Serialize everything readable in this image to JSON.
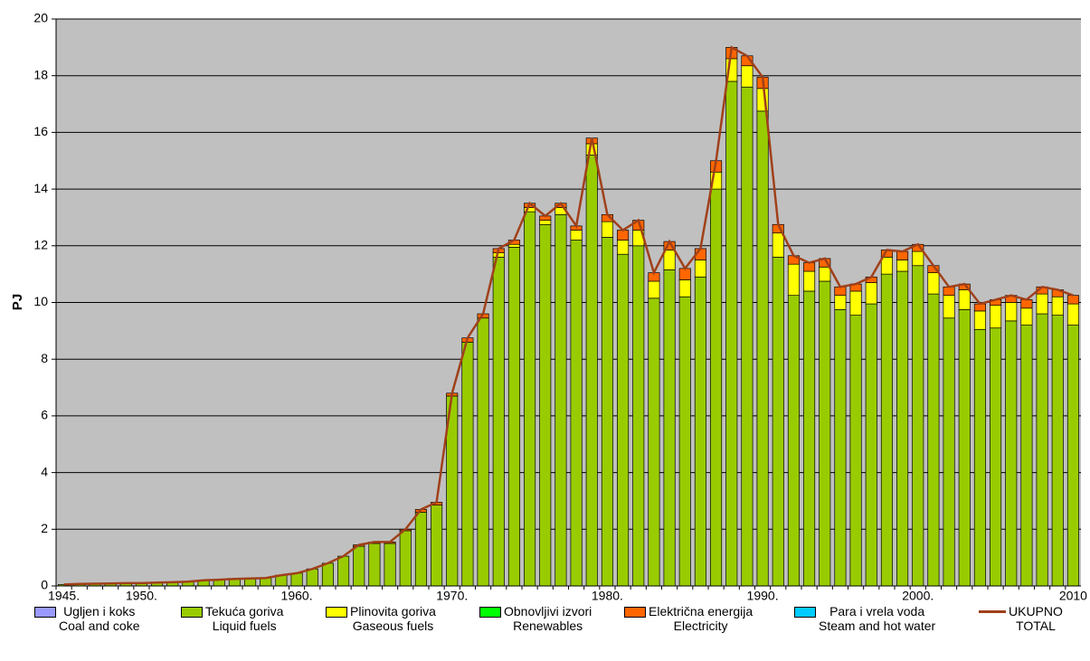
{
  "chart_data": {
    "type": "bar",
    "stacked": true,
    "ylabel": "PJ",
    "categories": [
      "1945.",
      null,
      null,
      null,
      null,
      "1950.",
      null,
      null,
      null,
      null,
      null,
      null,
      null,
      null,
      null,
      "1960.",
      null,
      null,
      null,
      null,
      null,
      null,
      null,
      null,
      null,
      "1970.",
      null,
      null,
      null,
      null,
      null,
      null,
      null,
      null,
      null,
      "1980.",
      null,
      null,
      null,
      null,
      null,
      null,
      null,
      null,
      null,
      "1990.",
      null,
      null,
      null,
      null,
      null,
      null,
      null,
      null,
      null,
      "2000.",
      null,
      null,
      null,
      null,
      null,
      null,
      null,
      null,
      null,
      "2010"
    ],
    "series": [
      {
        "name": "Ugljen i koks\nCoal and coke",
        "color": "#9999ff",
        "values": [
          0,
          0,
          0,
          0,
          0,
          0,
          0,
          0,
          0,
          0,
          0,
          0,
          0,
          0,
          0,
          0,
          0,
          0,
          0,
          0,
          0,
          0,
          0,
          0,
          0,
          0,
          0,
          0,
          0,
          0,
          0,
          0,
          0,
          0,
          0,
          0,
          0,
          0,
          0,
          0,
          0,
          0,
          0,
          0,
          0,
          0,
          0,
          0,
          0,
          0,
          0,
          0,
          0,
          0,
          0,
          0,
          0,
          0,
          0,
          0,
          0,
          0,
          0,
          0,
          0,
          0
        ]
      },
      {
        "name": "Tekuća goriva\nLiquid fuels",
        "color": "#99cc00",
        "values": [
          0.05,
          0.07,
          0.08,
          0.09,
          0.1,
          0.1,
          0.12,
          0.13,
          0.15,
          0.2,
          0.22,
          0.25,
          0.26,
          0.28,
          0.38,
          0.45,
          0.6,
          0.8,
          1.05,
          1.4,
          1.5,
          1.5,
          1.95,
          2.6,
          2.85,
          6.7,
          8.6,
          9.45,
          11.6,
          11.95,
          13.2,
          12.75,
          13.1,
          12.2,
          15.2,
          12.3,
          11.7,
          12.0,
          10.15,
          11.15,
          10.2,
          10.9,
          14.0,
          17.8,
          17.6,
          16.75,
          11.6,
          10.25,
          10.4,
          10.75,
          9.75,
          9.55,
          9.95,
          11.0,
          11.1,
          11.3,
          10.3,
          9.45,
          9.75,
          9.05,
          9.1,
          9.35,
          9.2,
          9.6,
          9.55,
          9.2
        ]
      },
      {
        "name": "Plinovita goriva\nGaseous fuels",
        "color": "#ffff00",
        "values": [
          0,
          0,
          0,
          0,
          0,
          0,
          0,
          0,
          0,
          0,
          0,
          0,
          0,
          0,
          0,
          0,
          0,
          0,
          0,
          0,
          0,
          0,
          0,
          0,
          0,
          0,
          0,
          0,
          0.15,
          0.1,
          0.15,
          0.15,
          0.25,
          0.35,
          0.4,
          0.55,
          0.5,
          0.55,
          0.6,
          0.7,
          0.6,
          0.6,
          0.6,
          0.8,
          0.75,
          0.8,
          0.85,
          1.1,
          0.7,
          0.5,
          0.5,
          0.85,
          0.75,
          0.6,
          0.4,
          0.5,
          0.75,
          0.8,
          0.7,
          0.65,
          0.8,
          0.65,
          0.6,
          0.7,
          0.65,
          0.75
        ]
      },
      {
        "name": "Obnovljivi izvori\nRenewables",
        "color": "#00ff00",
        "values": [
          0,
          0,
          0,
          0,
          0,
          0,
          0,
          0,
          0,
          0,
          0,
          0,
          0,
          0,
          0,
          0,
          0,
          0,
          0,
          0,
          0,
          0,
          0,
          0,
          0,
          0,
          0,
          0,
          0,
          0,
          0,
          0,
          0,
          0,
          0,
          0,
          0,
          0,
          0,
          0,
          0,
          0,
          0,
          0,
          0,
          0,
          0,
          0,
          0,
          0,
          0,
          0,
          0,
          0,
          0,
          0,
          0,
          0,
          0,
          0,
          0,
          0,
          0,
          0,
          0,
          0
        ]
      },
      {
        "name": "Električna energija\nElectricity",
        "color": "#ff6600",
        "values": [
          0,
          0,
          0,
          0,
          0,
          0,
          0,
          0,
          0,
          0,
          0,
          0,
          0,
          0,
          0,
          0,
          0,
          0,
          0,
          0.05,
          0.05,
          0.05,
          0.05,
          0.1,
          0.1,
          0.1,
          0.15,
          0.15,
          0.15,
          0.15,
          0.15,
          0.15,
          0.15,
          0.15,
          0.2,
          0.25,
          0.35,
          0.35,
          0.3,
          0.3,
          0.4,
          0.4,
          0.4,
          0.4,
          0.35,
          0.4,
          0.3,
          0.3,
          0.3,
          0.3,
          0.3,
          0.25,
          0.2,
          0.25,
          0.3,
          0.25,
          0.25,
          0.3,
          0.2,
          0.25,
          0.2,
          0.25,
          0.3,
          0.25,
          0.25,
          0.3
        ]
      },
      {
        "name": "Para i vrela voda\nSteam and hot water",
        "color": "#00ccff",
        "values": [
          0,
          0,
          0,
          0,
          0,
          0,
          0,
          0,
          0,
          0,
          0,
          0,
          0,
          0,
          0,
          0,
          0,
          0,
          0,
          0,
          0,
          0,
          0,
          0,
          0,
          0,
          0,
          0,
          0,
          0,
          0,
          0,
          0,
          0,
          0,
          0,
          0,
          0,
          0,
          0,
          0,
          0,
          0,
          0,
          0,
          0,
          0,
          0,
          0,
          0,
          0,
          0,
          0,
          0,
          0,
          0,
          0,
          0,
          0,
          0,
          0,
          0,
          0,
          0,
          0,
          0
        ]
      },
      {
        "name": "UKUPNO\nTOTAL",
        "type": "line",
        "color": "#a0401a",
        "values": [
          0.05,
          0.07,
          0.08,
          0.09,
          0.1,
          0.1,
          0.12,
          0.13,
          0.15,
          0.2,
          0.22,
          0.25,
          0.26,
          0.28,
          0.38,
          0.45,
          0.6,
          0.8,
          1.05,
          1.45,
          1.55,
          1.55,
          2.0,
          2.7,
          2.95,
          6.8,
          8.75,
          9.6,
          11.9,
          12.2,
          13.5,
          13.05,
          13.5,
          12.7,
          15.8,
          13.1,
          12.55,
          12.9,
          11.05,
          12.15,
          11.2,
          11.9,
          15.0,
          19.0,
          18.7,
          17.95,
          12.75,
          11.65,
          11.4,
          11.55,
          10.55,
          10.65,
          10.9,
          11.85,
          11.8,
          12.05,
          11.3,
          10.55,
          10.65,
          9.95,
          10.1,
          10.25,
          10.1,
          10.55,
          10.45,
          10.25
        ]
      }
    ],
    "ylim": [
      0,
      20
    ],
    "yticks": [
      0,
      2,
      4,
      6,
      8,
      10,
      12,
      14,
      16,
      18,
      20
    ],
    "grid": true,
    "legend": "bottom"
  }
}
